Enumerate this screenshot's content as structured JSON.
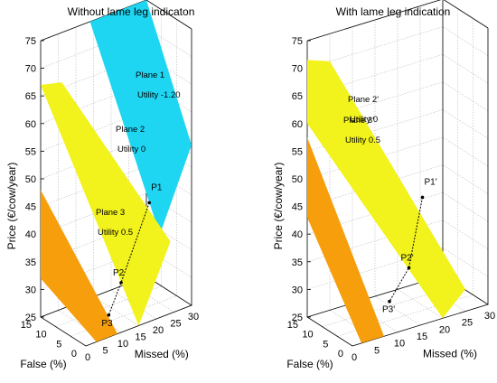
{
  "chart_data": [
    {
      "type": "3d-surface",
      "title": "Without lame leg indicaton",
      "xlabel": "False (%)",
      "ylabel": "Missed (%)",
      "zlabel": "Price (€/cow/year)",
      "x_ticks": [
        "0",
        "5",
        "10",
        "15"
      ],
      "y_ticks": [
        "0",
        "5",
        "10",
        "15",
        "20",
        "25",
        "30"
      ],
      "z_ticks": [
        "25",
        "30",
        "35",
        "40",
        "45",
        "50",
        "55",
        "60",
        "65",
        "70",
        "75"
      ],
      "grid": true,
      "planes": [
        {
          "name": "Plane 1",
          "utility": "Utility -1.20",
          "color": "#1fd6f2"
        },
        {
          "name": "Plane 2",
          "utility": "Utility 0",
          "color": "#f2f21c"
        },
        {
          "name": "Plane 3",
          "utility": "Utility 0.5",
          "color": "#f79e0c"
        }
      ],
      "points": [
        {
          "label": "P1",
          "price": 46.5
        },
        {
          "label": "P2",
          "price": 34
        },
        {
          "label": "P3",
          "price": 29
        }
      ]
    },
    {
      "type": "3d-surface",
      "title": "With lame leg indication",
      "xlabel": "False (%)",
      "ylabel": "Missed (%)",
      "zlabel": "Price (€/cow/year)",
      "x_ticks": [
        "0",
        "5",
        "10",
        "15"
      ],
      "y_ticks": [
        "0",
        "5",
        "10",
        "15",
        "20",
        "25",
        "30"
      ],
      "z_ticks": [
        "25",
        "30",
        "35",
        "40",
        "45",
        "50",
        "55",
        "60",
        "65",
        "70",
        "75"
      ],
      "grid": true,
      "planes": [
        {
          "name": "Plane 2'",
          "utility": "Utility 0",
          "color": "#f2f21c"
        },
        {
          "name": "Plane 3'",
          "utility": "Utility 0.5",
          "color": "#f79e0c"
        }
      ],
      "points": [
        {
          "label": "P1'",
          "price": 48
        },
        {
          "label": "P2'",
          "price": 36
        },
        {
          "label": "P3'",
          "price": 31
        }
      ]
    }
  ]
}
